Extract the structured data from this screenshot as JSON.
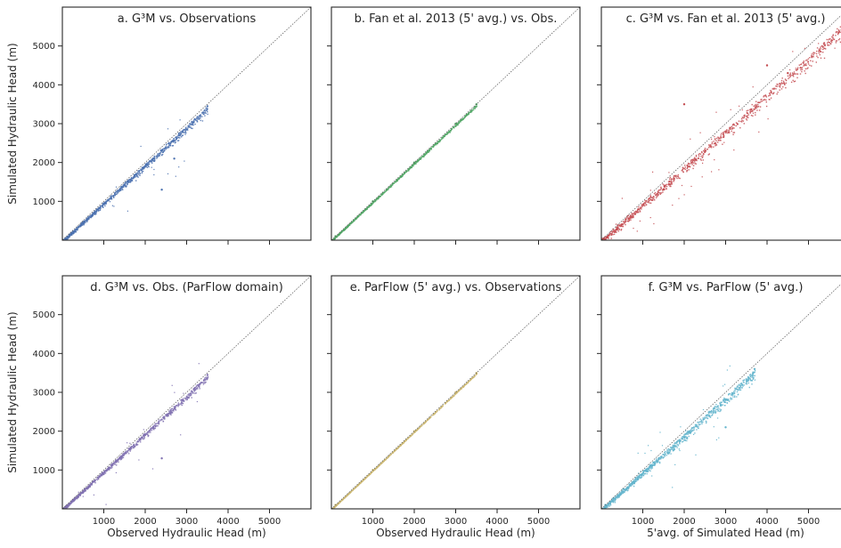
{
  "chart_data": [
    {
      "type": "scatter",
      "title": "a. G³M vs. Observations",
      "xlabel": "",
      "ylabel": "Simulated Hydraulic Head (m)",
      "xlim": [
        0,
        6000
      ],
      "ylim": [
        0,
        6000
      ],
      "xticks": [],
      "yticks": [
        1000,
        2000,
        3000,
        4000,
        5000
      ],
      "reference_line": "1:1",
      "color": "#4c72b0",
      "series": [
        {
          "x_max": 3500,
          "y_bias": -50,
          "spread": 150,
          "outlier_frac": 0.02,
          "points": [
            [
              200,
              150
            ],
            [
              800,
              720
            ],
            [
              1500,
              1420
            ],
            [
              2200,
              2100
            ],
            [
              2900,
              2800
            ],
            [
              3500,
              3450
            ],
            [
              2400,
              1300
            ],
            [
              2700,
              2100
            ]
          ]
        }
      ]
    },
    {
      "type": "scatter",
      "title": "b. Fan et al. 2013 (5' avg.) vs. Obs.",
      "xlabel": "",
      "ylabel": "",
      "xlim": [
        0,
        6000
      ],
      "ylim": [
        0,
        6000
      ],
      "xticks": [],
      "yticks": [],
      "reference_line": "1:1",
      "color": "#55a868",
      "series": [
        {
          "x_max": 3500,
          "y_bias": 0,
          "spread": 50,
          "outlier_frac": 0.0,
          "points": [
            [
              100,
              100
            ],
            [
              1000,
              1000
            ],
            [
              2000,
              2000
            ],
            [
              3000,
              3000
            ],
            [
              3500,
              3500
            ]
          ]
        }
      ]
    },
    {
      "type": "scatter",
      "title": "c. G³M vs. Fan et al. 2013 (5' avg.)",
      "xlabel": "",
      "ylabel": "",
      "xlim": [
        0,
        6000
      ],
      "ylim": [
        0,
        6000
      ],
      "xticks": [],
      "yticks": [],
      "reference_line": "1:1",
      "color": "#c44e52",
      "series": [
        {
          "x_max": 6000,
          "y_bias": -150,
          "spread": 300,
          "outlier_frac": 0.05,
          "points": [
            [
              0,
              0
            ],
            [
              1500,
              1300
            ],
            [
              3000,
              2800
            ],
            [
              4500,
              4300
            ],
            [
              6000,
              5800
            ],
            [
              2000,
              3500
            ],
            [
              4000,
              4500
            ]
          ]
        }
      ]
    },
    {
      "type": "scatter",
      "title": "d. G³M vs. Obs. (ParFlow domain)",
      "xlabel": "Observed Hydraulic Head (m)",
      "ylabel": "Simulated Hydraulic Head (m)",
      "xlim": [
        0,
        6000
      ],
      "ylim": [
        0,
        6000
      ],
      "xticks": [
        1000,
        2000,
        3000,
        4000,
        5000
      ],
      "yticks": [
        1000,
        2000,
        3000,
        4000,
        5000
      ],
      "reference_line": "1:1",
      "color": "#8172b2",
      "series": [
        {
          "x_max": 3500,
          "y_bias": -50,
          "spread": 130,
          "outlier_frac": 0.02,
          "points": [
            [
              200,
              150
            ],
            [
              1000,
              900
            ],
            [
              2000,
              1900
            ],
            [
              2900,
              2800
            ],
            [
              3500,
              3450
            ],
            [
              2400,
              1300
            ]
          ]
        }
      ]
    },
    {
      "type": "scatter",
      "title": "e. ParFlow (5' avg.) vs. Observations",
      "xlabel": "Observed Hydraulic Head (m)",
      "ylabel": "",
      "xlim": [
        0,
        6000
      ],
      "ylim": [
        0,
        6000
      ],
      "xticks": [
        1000,
        2000,
        3000,
        4000,
        5000
      ],
      "yticks": [],
      "reference_line": "1:1",
      "color": "#ccb974",
      "series": [
        {
          "x_max": 3500,
          "y_bias": 0,
          "spread": 20,
          "outlier_frac": 0.0,
          "points": [
            [
              100,
              100
            ],
            [
              1000,
              1000
            ],
            [
              2000,
              2000
            ],
            [
              3000,
              3000
            ],
            [
              3500,
              3500
            ]
          ]
        }
      ]
    },
    {
      "type": "scatter",
      "title": "f. G³M vs. ParFlow (5' avg.)",
      "xlabel": "5'avg. of Simulated Head (m)",
      "ylabel": "",
      "xlim": [
        0,
        6000
      ],
      "ylim": [
        0,
        6000
      ],
      "xticks": [
        1000,
        2000,
        3000,
        4000,
        5000
      ],
      "yticks": [],
      "reference_line": "1:1",
      "color": "#64b5cd",
      "series": [
        {
          "x_max": 3700,
          "y_bias": -100,
          "spread": 200,
          "outlier_frac": 0.03,
          "points": [
            [
              100,
              100
            ],
            [
              1000,
              900
            ],
            [
              2000,
              1850
            ],
            [
              3000,
              2800
            ],
            [
              3700,
              3600
            ],
            [
              3000,
              2100
            ]
          ]
        }
      ]
    }
  ]
}
